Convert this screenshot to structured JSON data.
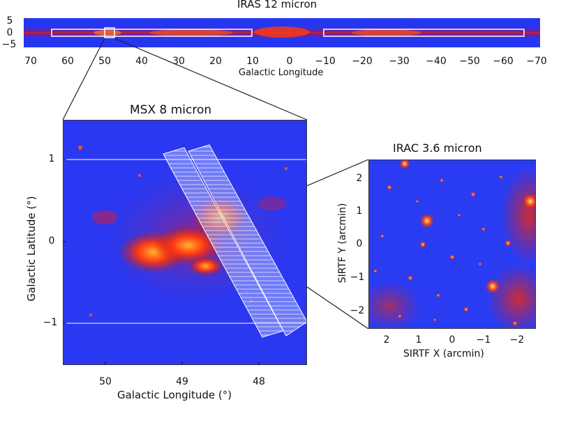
{
  "iras": {
    "title": "IRAS 12 micron",
    "xlabel": "Galactic Longitude",
    "x_ticks": [
      "70",
      "60",
      "50",
      "40",
      "30",
      "20",
      "10",
      "0",
      "−10",
      "−20",
      "−30",
      "−40",
      "−50",
      "−60",
      "−70"
    ],
    "y_ticks": [
      "5",
      "0",
      "−5"
    ]
  },
  "msx": {
    "title": "MSX 8 micron",
    "xlabel": "Galactic Longitude (°)",
    "ylabel": "Galactic Latitude (°)",
    "x_ticks": [
      "50",
      "49",
      "48"
    ],
    "y_ticks": [
      "1",
      "0",
      "−1"
    ]
  },
  "irac": {
    "title": "IRAC 3.6 micron",
    "xlabel": "SIRTF X (arcmin)",
    "ylabel": "SIRTF Y (arcmin)",
    "x_ticks": [
      "2",
      "1",
      "0",
      "−1",
      "−2"
    ],
    "y_ticks": [
      "2",
      "1",
      "0",
      "−1",
      "−2"
    ]
  },
  "colors": {
    "background_blue": "#2436f0",
    "emission_red": "#e01a12",
    "emission_orange": "#ff8a1c",
    "overlay_white": "#ffffff"
  }
}
